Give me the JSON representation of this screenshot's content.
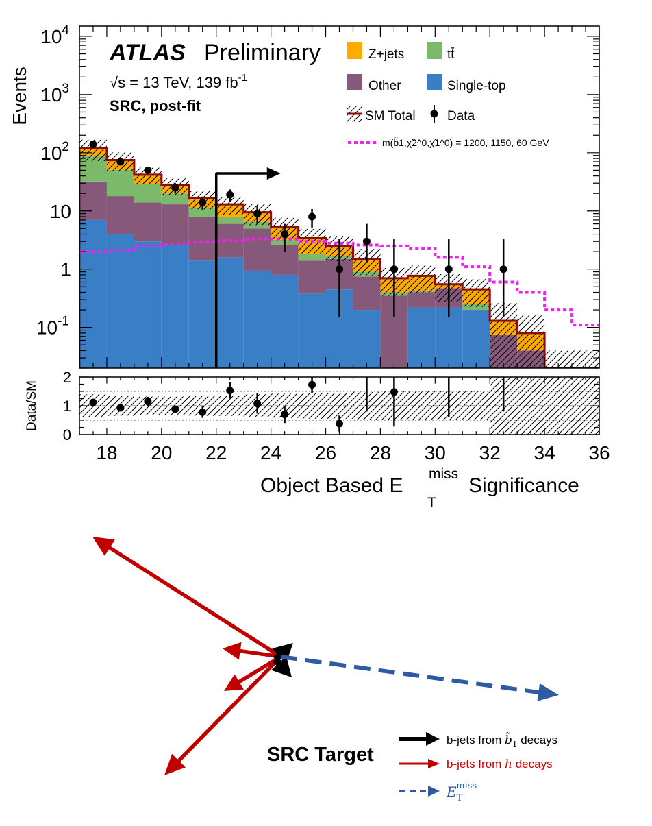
{
  "colors": {
    "zjets": "#ffaa00",
    "ttbar": "#7db96b",
    "other": "#86587a",
    "singletop": "#3a7ec6",
    "smtotal": "#8b0d0d",
    "data": "#000000",
    "signal": "#ee22ee",
    "bjet_sbottom": "#000000",
    "bjet_higgs": "#c00000",
    "met": "#2e59a3",
    "met_text": "#2e59a3",
    "higgs_text": "#d00000"
  },
  "chart_data": {
    "type": "bar",
    "stacked": true,
    "log_y": true,
    "y_axis": {
      "label": "Events",
      "range": [
        0.02,
        15000
      ],
      "tick_labels": [
        "10^-1",
        "1",
        "10",
        "10^2",
        "10^3",
        "10^4"
      ]
    },
    "x_axis": {
      "label": "Object Based E_T^miss Significance",
      "range": [
        17,
        36
      ],
      "tick_labels": [
        "18",
        "20",
        "22",
        "24",
        "26",
        "28",
        "30",
        "32",
        "34",
        "36"
      ]
    },
    "bin_edges": [
      17,
      18,
      19,
      20,
      21,
      22,
      23,
      24,
      25,
      26,
      27,
      28,
      29,
      30,
      31,
      32,
      33,
      34,
      35,
      36
    ],
    "series": [
      {
        "name": "Single-top",
        "color_key": "singletop",
        "values": [
          7,
          4,
          3,
          2.6,
          1.4,
          1.6,
          0.95,
          0.8,
          0.38,
          0.45,
          0.2,
          0,
          0.22,
          0.22,
          0.2,
          0,
          0,
          0,
          0
        ]
      },
      {
        "name": "Other",
        "color_key": "other",
        "values": [
          25,
          14,
          11,
          10.4,
          6.6,
          4.4,
          4.05,
          1.8,
          1.02,
          1.05,
          0.55,
          0.35,
          0.18,
          0.25,
          0,
          0.075,
          0.04,
          0,
          0
        ]
      },
      {
        "name": "tt̄",
        "color_key": "ttbar",
        "values": [
          58,
          33,
          15,
          7,
          3.5,
          2,
          1.5,
          0.6,
          0.4,
          0.2,
          0.15,
          0.05,
          0.02,
          0,
          0.05,
          0,
          0,
          0,
          0
        ]
      },
      {
        "name": "Z+jets",
        "color_key": "zjets",
        "values": [
          30,
          24,
          13,
          7.5,
          5,
          5,
          3,
          2.2,
          1.6,
          0.8,
          0.6,
          0.3,
          0.35,
          0.08,
          0.2,
          0.055,
          0.04,
          0,
          0
        ]
      }
    ],
    "sm_total": [
      120,
      75,
      42,
      27.5,
      16.5,
      13,
      9.5,
      5.4,
      3.4,
      2.5,
      1.5,
      0.7,
      0.77,
      0.55,
      0.45,
      0.13,
      0.08,
      0.02,
      0.02
    ],
    "signal": {
      "name": "m(b̃1,χ̃2^0,χ̃1^0) = 1200, 1150, 60 GeV",
      "values": [
        2,
        2.1,
        2.5,
        2.7,
        2.9,
        3.1,
        3.3,
        3.3,
        3.0,
        2.8,
        2.6,
        2.5,
        2.3,
        1.6,
        1.1,
        0.6,
        0.4,
        0.2,
        0.11
      ]
    },
    "data": {
      "name": "Data",
      "x": [
        17.5,
        18.5,
        19.5,
        20.5,
        21.5,
        22.5,
        23.5,
        24.5,
        25.5,
        26.5,
        27.5,
        28.5,
        30.5,
        32.5
      ],
      "y": [
        140,
        70,
        50,
        25,
        14,
        19,
        9,
        4,
        8,
        1,
        3,
        1,
        1,
        1
      ],
      "yerr_low": [
        12,
        8.4,
        7.1,
        5,
        3.7,
        4.4,
        3,
        2,
        2.8,
        0.85,
        1.7,
        0.85,
        0.85,
        0.85
      ],
      "yerr_high": [
        12,
        8.4,
        7.1,
        5,
        3.7,
        4.4,
        3,
        2,
        2.8,
        2.3,
        3,
        2.3,
        2.3,
        2.3
      ]
    },
    "selection_cut": {
      "x": 22
    },
    "ratio": {
      "label": "Data/SM",
      "range": [
        0,
        2
      ],
      "tick_labels": [
        "0",
        "1",
        "2"
      ],
      "x": [
        17.5,
        18.5,
        19.5,
        20.5,
        21.5,
        22.5,
        23.5,
        24.5,
        25.5,
        26.5,
        27.5,
        28.5,
        30.5,
        32.5
      ],
      "y": [
        1.12,
        0.93,
        1.15,
        0.88,
        0.78,
        1.53,
        1.08,
        0.7,
        1.73,
        0.38,
        2.0,
        1.48,
        2.0,
        2.0
      ],
      "err": [
        0.12,
        0.05,
        0.16,
        0.12,
        0.2,
        0.28,
        0.35,
        0.3,
        0.3,
        0.28,
        1.2,
        1.2,
        1.4,
        1.2
      ],
      "band": [
        0.4,
        0.35,
        0.32,
        0.32,
        0.35,
        0.35,
        0.4,
        0.42,
        0.45,
        0.45,
        0.48,
        0.5,
        0.5,
        0.5,
        0.5,
        1.0,
        1.0,
        1.0,
        1.0
      ]
    },
    "annotations": {
      "atlas": "ATLAS",
      "preliminary": "Preliminary",
      "energy_sqrt": "√s = 13 TeV, 139 fb",
      "energy_exp": "-1",
      "region": "SRC, post-fit"
    },
    "legend": {
      "placement": "top-right",
      "zjets": "Z+jets",
      "ttbar": "tt̄",
      "other": "Other",
      "singletop": "Single-top",
      "smtotal": "SM Total",
      "data": "Data",
      "signal": "m(b̃1,χ̃2^0,χ̃1^0) = 1200, 1150, 60 GeV"
    }
  },
  "diagram": {
    "title": "SRC Target",
    "legend": [
      {
        "key": "sbottom",
        "text_prefix": "b-jets from ",
        "text_symbol": "b̃",
        "text_sub": "1",
        "text_suffix": " decays"
      },
      {
        "key": "higgs",
        "text_prefix": "b-jets from ",
        "text_symbol": "h",
        "text_suffix": " decays"
      },
      {
        "key": "met",
        "text_symbol": "E",
        "text_sub": "T",
        "text_sup": "miss"
      }
    ]
  }
}
